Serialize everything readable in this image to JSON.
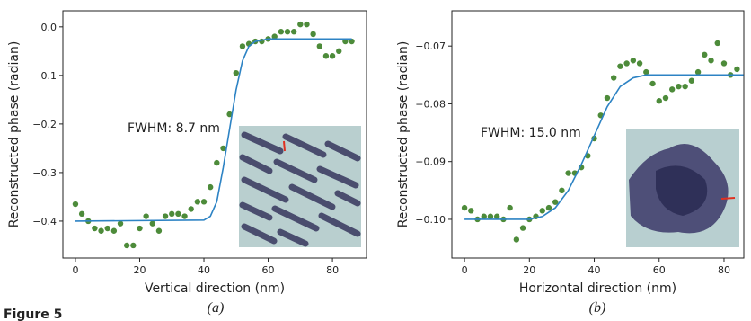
{
  "chart_data": [
    {
      "type": "scatter",
      "xlabel": "Vertical direction (nm)",
      "ylabel": "Reconstructed phase (radian)",
      "annotation": "FWHM: 8.7 nm",
      "caption": "(a)",
      "xlim": [
        -3.9,
        90.6
      ],
      "ylim": [
        -0.476,
        0.033
      ],
      "xticks": [
        0,
        20,
        40,
        60,
        80
      ],
      "yticks": [
        {
          "value": -0.4,
          "label": "−0.4"
        },
        {
          "value": -0.3,
          "label": "−0.3"
        },
        {
          "value": -0.2,
          "label": "−0.2"
        },
        {
          "value": -0.1,
          "label": "−0.1"
        },
        {
          "value": 0,
          "label": "0.0"
        }
      ],
      "series": [
        {
          "kind": "markers",
          "color": "#4d8b3a",
          "x": [
            0,
            2,
            4,
            6,
            8,
            10,
            12,
            14,
            16,
            18,
            20,
            22,
            24,
            26,
            28,
            30,
            32,
            34,
            36,
            38,
            40,
            42,
            44,
            46,
            48,
            50,
            52,
            54,
            56,
            58,
            60,
            62,
            64,
            66,
            68,
            70,
            72,
            74,
            76,
            78,
            80,
            82,
            84,
            86
          ],
          "values": [
            -0.365,
            -0.385,
            -0.4,
            -0.415,
            -0.42,
            -0.415,
            -0.42,
            -0.405,
            -0.45,
            -0.45,
            -0.415,
            -0.39,
            -0.405,
            -0.42,
            -0.39,
            -0.385,
            -0.385,
            -0.39,
            -0.375,
            -0.36,
            -0.36,
            -0.33,
            -0.28,
            -0.25,
            -0.18,
            -0.095,
            -0.04,
            -0.035,
            -0.03,
            -0.03,
            -0.025,
            -0.02,
            -0.01,
            -0.01,
            -0.01,
            0.005,
            0.005,
            -0.015,
            -0.04,
            -0.06,
            -0.06,
            -0.05,
            -0.03,
            -0.03
          ]
        },
        {
          "kind": "line",
          "color": "#2d83c4",
          "x": [
            0,
            40,
            42,
            44,
            46,
            48,
            50,
            52,
            54,
            56,
            60,
            86
          ],
          "values": [
            -0.4,
            -0.398,
            -0.39,
            -0.36,
            -0.29,
            -0.21,
            -0.13,
            -0.07,
            -0.04,
            -0.03,
            -0.025,
            -0.025
          ]
        }
      ]
    },
    {
      "type": "scatter",
      "xlabel": "Horizontal direction (nm)",
      "ylabel": "Reconstructed phase (radian)",
      "annotation": "FWHM: 15.0 nm",
      "caption": "(b)",
      "xlim": [
        -3.9,
        86.1
      ],
      "ylim": [
        -0.1067,
        -0.0639
      ],
      "xticks": [
        0,
        20,
        40,
        60,
        80
      ],
      "yticks": [
        {
          "value": -0.1,
          "label": "−0.10"
        },
        {
          "value": -0.09,
          "label": "−0.09"
        },
        {
          "value": -0.08,
          "label": "−0.08"
        },
        {
          "value": -0.07,
          "label": "−0.07"
        }
      ],
      "series": [
        {
          "kind": "markers",
          "color": "#4d8b3a",
          "x": [
            0,
            2,
            4,
            6,
            8,
            10,
            12,
            14,
            16,
            18,
            20,
            22,
            24,
            26,
            28,
            30,
            32,
            34,
            36,
            38,
            40,
            42,
            44,
            46,
            48,
            50,
            52,
            54,
            56,
            58,
            60,
            62,
            64,
            66,
            68,
            70,
            72,
            74,
            76,
            78,
            80,
            82,
            84
          ],
          "values": [
            -0.098,
            -0.0985,
            -0.1,
            -0.0995,
            -0.0995,
            -0.0995,
            -0.1,
            -0.098,
            -0.1035,
            -0.1015,
            -0.1,
            -0.0995,
            -0.0985,
            -0.098,
            -0.097,
            -0.095,
            -0.092,
            -0.092,
            -0.091,
            -0.089,
            -0.086,
            -0.082,
            -0.079,
            -0.0755,
            -0.0735,
            -0.073,
            -0.0725,
            -0.073,
            -0.0745,
            -0.0765,
            -0.0795,
            -0.079,
            -0.0775,
            -0.077,
            -0.077,
            -0.076,
            -0.0745,
            -0.0715,
            -0.0725,
            -0.0695,
            -0.073,
            -0.075,
            -0.074
          ]
        },
        {
          "kind": "line",
          "color": "#2d83c4",
          "x": [
            0,
            20,
            24,
            28,
            32,
            36,
            40,
            44,
            48,
            52,
            56,
            86
          ],
          "values": [
            -0.1,
            -0.1,
            -0.0995,
            -0.098,
            -0.095,
            -0.0905,
            -0.0855,
            -0.0805,
            -0.077,
            -0.0755,
            -0.075,
            -0.075
          ]
        }
      ]
    }
  ],
  "figure_label": "Figure 5"
}
